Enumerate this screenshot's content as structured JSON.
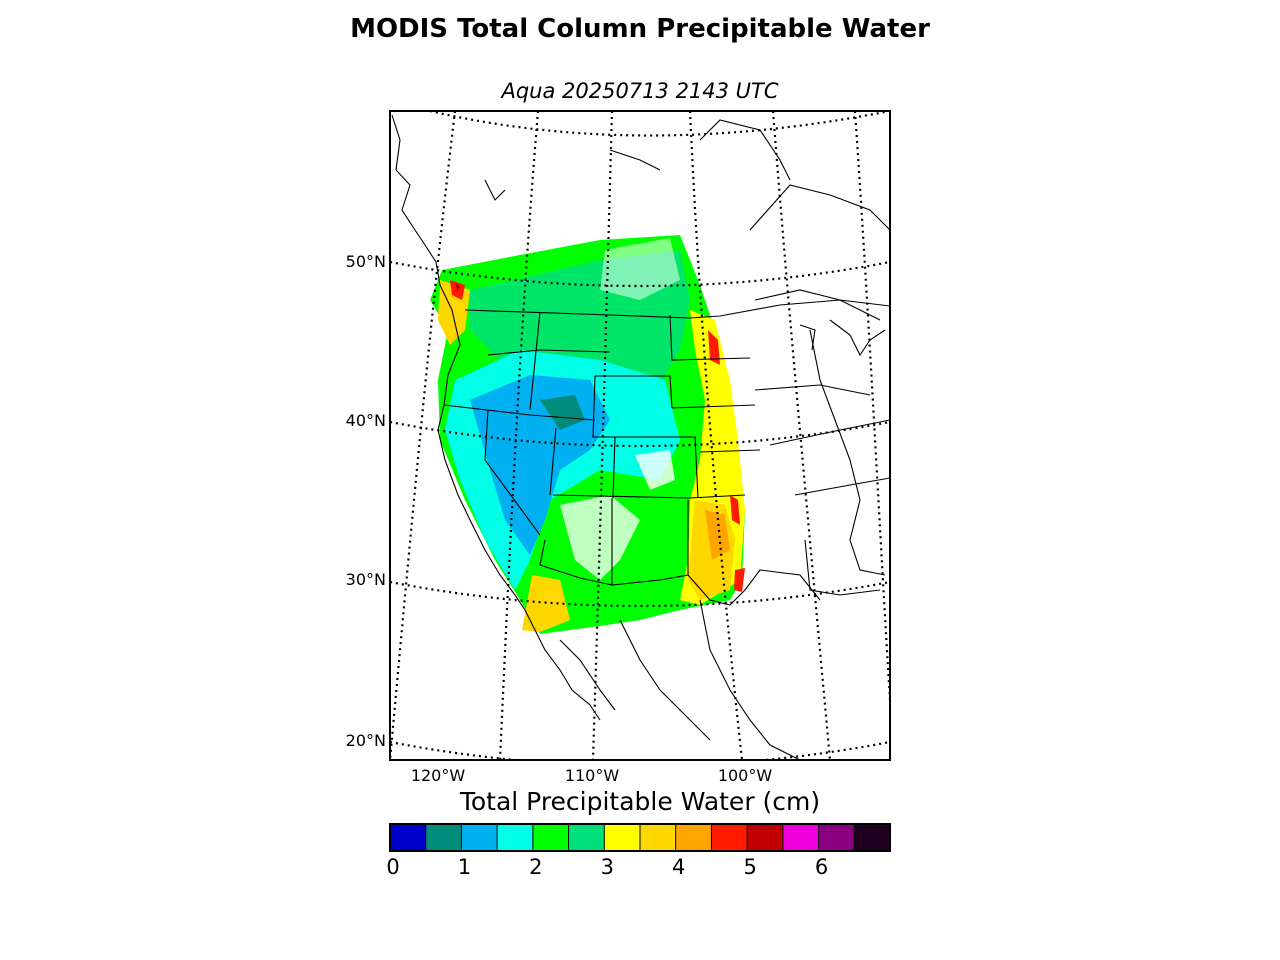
{
  "header": {
    "title": "MODIS Total Column Precipitable Water",
    "subtitle": "Aqua 20250713 2143 UTC"
  },
  "map": {
    "lat_labels": [
      "50°N",
      "40°N",
      "30°N",
      "20°N"
    ],
    "lon_labels": [
      "120°W",
      "110°W",
      "100°W"
    ]
  },
  "colorbar": {
    "title": "Total Precipitable Water (cm)",
    "unit": "cm",
    "range": [
      0,
      7
    ],
    "tick_labels": [
      "0",
      "1",
      "2",
      "3",
      "4",
      "5",
      "6"
    ],
    "colors": [
      "#0000cc",
      "#008c7a",
      "#00b0f0",
      "#00ffe6",
      "#00ff00",
      "#00e07a",
      "#ffff00",
      "#ffd700",
      "#ffa500",
      "#ff1a00",
      "#c00000",
      "#ee00dd",
      "#8a0080",
      "#200020"
    ]
  }
}
